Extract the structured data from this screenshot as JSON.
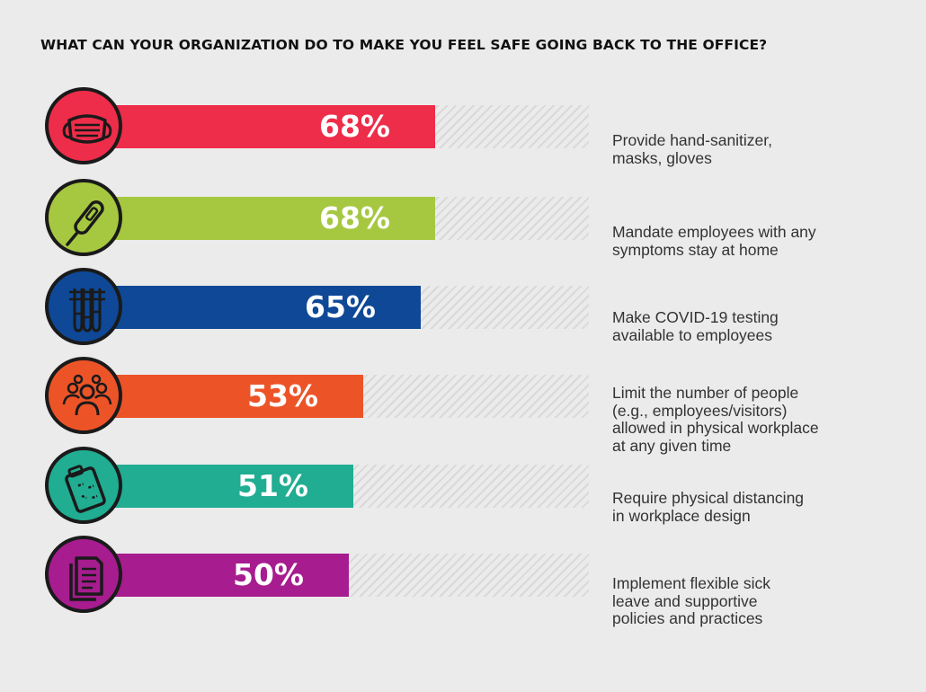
{
  "title": "WHAT CAN YOUR ORGANIZATION DO TO MAKE YOU FEEL SAFE GOING BACK TO THE OFFICE?",
  "chart_data": {
    "type": "bar",
    "orientation": "horizontal",
    "title": "WHAT CAN YOUR ORGANIZATION DO TO MAKE YOU FEEL SAFE GOING BACK TO THE OFFICE?",
    "xlim": [
      0,
      100
    ],
    "unit": "%",
    "items": [
      {
        "label": "68%",
        "value": 68,
        "color": "#ee2d4a",
        "icon": "mask-icon",
        "desc": [
          "Provide hand-sanitizer,",
          "masks, gloves"
        ]
      },
      {
        "label": "68%",
        "value": 68,
        "color": "#a6c841",
        "icon": "thermometer-icon",
        "desc": [
          "Mandate employees with any",
          "symptoms stay at home"
        ]
      },
      {
        "label": "65%",
        "value": 65,
        "color": "#0e4896",
        "icon": "test-tubes-icon",
        "desc": [
          "Make COVID-19 testing",
          "available to employees"
        ]
      },
      {
        "label": "53%",
        "value": 53,
        "color": "#ec5428",
        "icon": "people-group-icon",
        "desc": [
          "Limit the number of people",
          "(e.g., employees/visitors)",
          "allowed in physical workplace",
          "at any given time"
        ]
      },
      {
        "label": "51%",
        "value": 51,
        "color": "#20ad92",
        "icon": "clipboard-plan-icon",
        "desc": [
          "Require physical distancing",
          "in workplace design"
        ]
      },
      {
        "label": "50%",
        "value": 50,
        "color": "#a71c8f",
        "icon": "documents-icon",
        "desc": [
          "Implement flexible sick",
          "leave and supportive",
          "policies and practices"
        ]
      }
    ]
  }
}
